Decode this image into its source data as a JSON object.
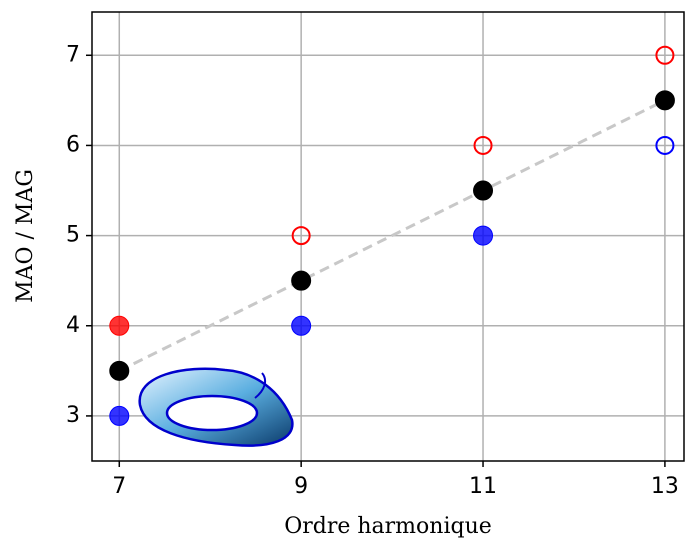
{
  "chart_data": {
    "type": "scatter",
    "xlabel": "Ordre harmonique",
    "ylabel": "MAO / MAG",
    "xlim": [
      6.7,
      13.21
    ],
    "ylim": [
      2.5,
      7.48
    ],
    "xticks": [
      7,
      9,
      11,
      13
    ],
    "yticks": [
      3,
      4,
      5,
      6,
      7
    ],
    "grid": true,
    "series": [
      {
        "color": "#ff0000",
        "filled": true,
        "x": [
          7
        ],
        "values": [
          4
        ]
      },
      {
        "color": "#ff0000",
        "filled": false,
        "x": [
          9,
          11,
          13
        ],
        "values": [
          5,
          6,
          7
        ]
      },
      {
        "color": "#0000ff",
        "filled": true,
        "x": [
          7,
          9,
          11
        ],
        "values": [
          3,
          4,
          5
        ]
      },
      {
        "color": "#0000ff",
        "filled": false,
        "x": [
          13
        ],
        "values": [
          6
        ]
      },
      {
        "color": "#000000",
        "filled": true,
        "x": [
          7,
          9,
          11,
          13
        ],
        "values": [
          3.5,
          4.5,
          5.5,
          6.5
        ]
      },
      {
        "color": "#c8c8c8",
        "style": "dashed",
        "x": [
          7,
          13
        ],
        "values": [
          3.5,
          6.5
        ]
      }
    ]
  }
}
